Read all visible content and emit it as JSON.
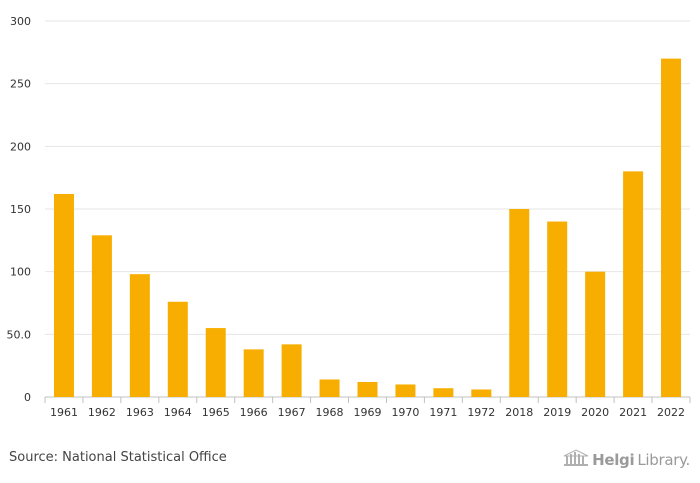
{
  "chart_data": {
    "type": "bar",
    "categories": [
      "1961",
      "1962",
      "1963",
      "1964",
      "1965",
      "1966",
      "1967",
      "1968",
      "1969",
      "1970",
      "1971",
      "1972",
      "2018",
      "2019",
      "2020",
      "2021",
      "2022"
    ],
    "values": [
      162,
      129,
      98,
      76,
      55,
      38,
      42,
      14,
      12,
      10,
      7,
      6,
      150,
      140,
      100,
      180,
      270
    ],
    "ylim": [
      0,
      300
    ],
    "yticks": [
      0,
      50,
      100,
      150,
      200,
      250,
      300
    ],
    "ytick_labels": [
      "0",
      "50.0",
      "100",
      "150",
      "200",
      "250",
      "300"
    ],
    "grid": true,
    "title": "",
    "xlabel": "",
    "ylabel": "",
    "bar_color": "#F7AE00"
  },
  "footer": {
    "source": "Source: National Statistical Office",
    "logo_bold": "Helgi",
    "logo_rest": "Library."
  },
  "colors": {
    "bar": "#F7AE00",
    "grid": "#e6e6e6",
    "axis": "#c0c0c0"
  }
}
